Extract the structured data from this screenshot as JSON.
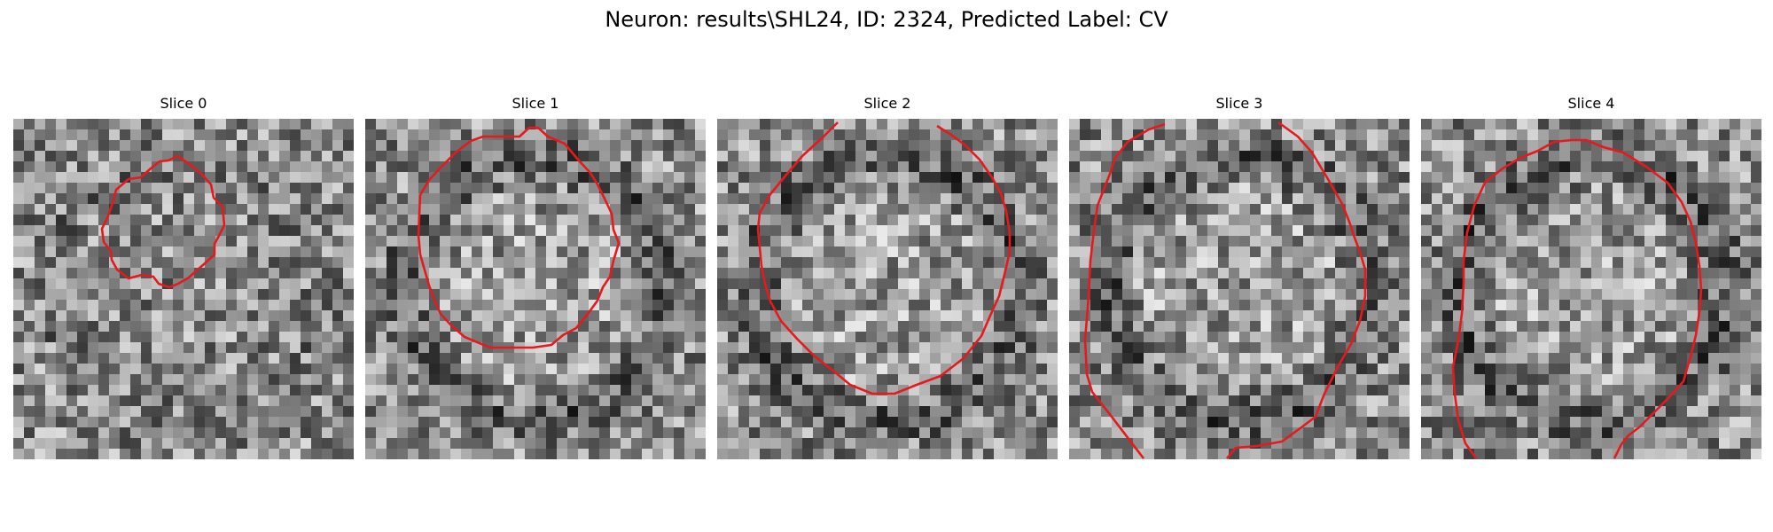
{
  "figure": {
    "title": "Neuron: results\\SHL24, ID: 2324, Predicted Label: CV"
  },
  "grid_size": 32,
  "contour_color": "#e41a1c",
  "colormap": "grayscale",
  "slices": [
    {
      "title": "Slice 0"
    },
    {
      "title": "Slice 1"
    },
    {
      "title": "Slice 2"
    },
    {
      "title": "Slice 3"
    },
    {
      "title": "Slice 4"
    }
  ]
}
